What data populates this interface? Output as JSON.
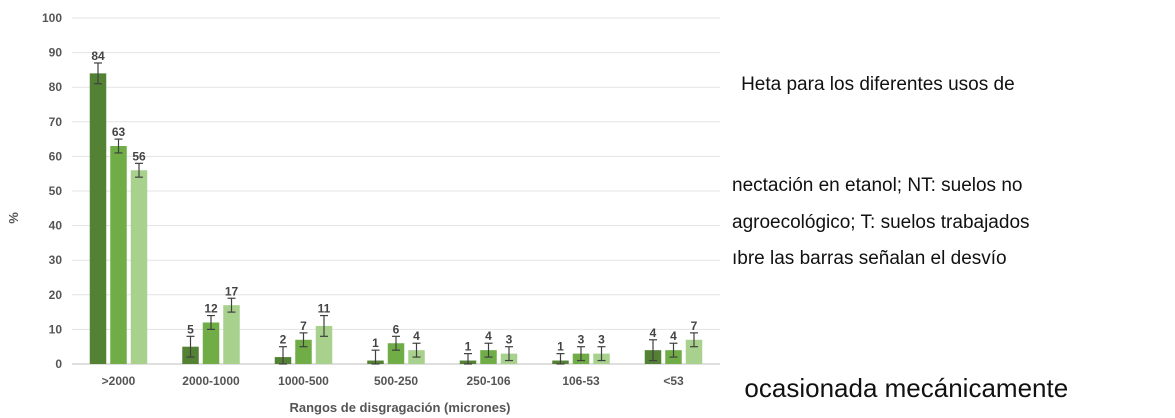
{
  "chart_data": {
    "type": "bar",
    "title": "",
    "xlabel": "Rangos de disgragación (micrones)",
    "ylabel": "%",
    "ylim": [
      0,
      100
    ],
    "yticks": [
      0,
      10,
      20,
      30,
      40,
      50,
      60,
      70,
      80,
      90,
      100
    ],
    "grid": true,
    "legend": "none",
    "categories": [
      ">2000",
      "2000-1000",
      "1000-500",
      "500-250",
      "250-106",
      "106-53",
      "<53"
    ],
    "series": [
      {
        "color": "#548235",
        "values": [
          84,
          5,
          2,
          1,
          1,
          1,
          4
        ],
        "errors": [
          3,
          3,
          3,
          3,
          2,
          2,
          3
        ]
      },
      {
        "color": "#70ad47",
        "values": [
          63,
          12,
          7,
          6,
          4,
          3,
          4
        ],
        "errors": [
          2,
          2,
          2,
          2,
          2,
          2,
          2
        ]
      },
      {
        "color": "#a9d18e",
        "values": [
          56,
          17,
          11,
          4,
          3,
          3,
          7
        ],
        "errors": [
          2,
          2,
          3,
          2,
          2,
          2,
          2
        ]
      }
    ]
  },
  "side_text": {
    "line1": "  Heta para los diferentes usos de",
    "line2": "nectación en etanol; NT: suelos no",
    "line3": "agroecológico; T: suelos trabajados",
    "line4": "ıbre   las   barras   señalan   el   desvío",
    "line5": "  ocasionada mecánicamente"
  }
}
